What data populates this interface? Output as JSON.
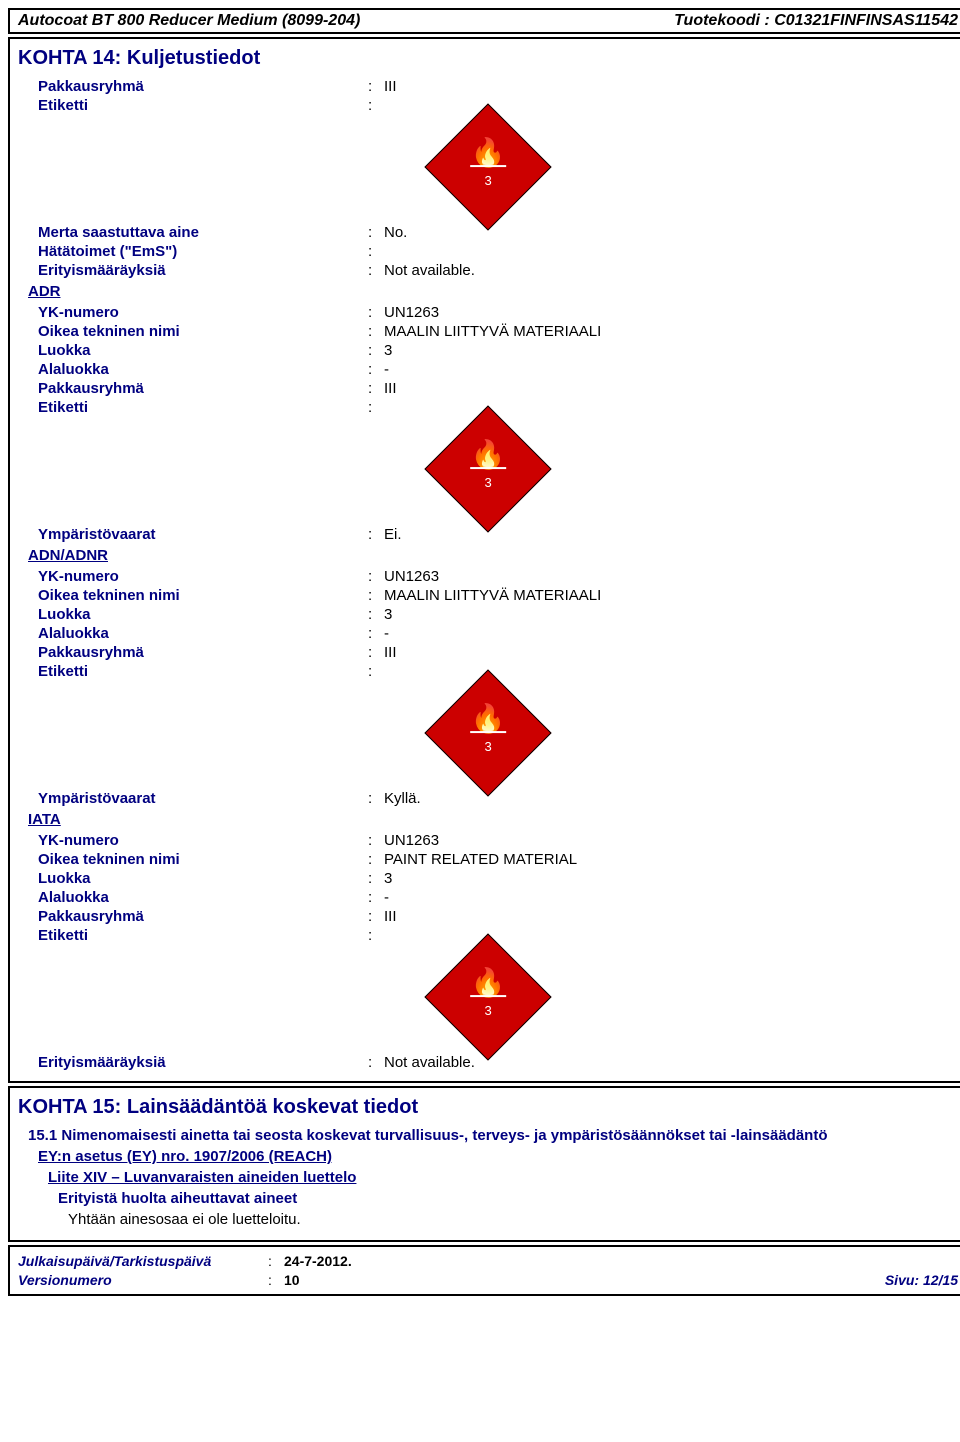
{
  "header": {
    "left": "Autocoat BT 800 Reducer Medium (8099-204)",
    "right": "Tuotekoodi : C01321FINFINSAS11542"
  },
  "section14": {
    "title": "KOHTA 14: Kuljetustiedot",
    "top": [
      {
        "l": "Pakkausryhmä",
        "v": "III"
      },
      {
        "l": "Etiketti",
        "v": ""
      }
    ],
    "mid": [
      {
        "l": "Merta saastuttava aine",
        "v": "No."
      },
      {
        "l": "Hätätoimet (\"EmS\")",
        "v": ""
      },
      {
        "l": "Erityismääräyksiä",
        "v": "Not available."
      }
    ],
    "adr": {
      "title": "ADR",
      "rows": [
        {
          "l": "YK-numero",
          "v": "UN1263"
        },
        {
          "l": "Oikea tekninen nimi",
          "v": "MAALIN LIITTYVÄ MATERIAALI"
        },
        {
          "l": "Luokka",
          "v": "3"
        },
        {
          "l": "Alaluokka",
          "v": "-"
        },
        {
          "l": "Pakkausryhmä",
          "v": "III"
        },
        {
          "l": "Etiketti",
          "v": ""
        }
      ],
      "env": [
        {
          "l": "Ympäristövaarat",
          "v": "Ei."
        }
      ]
    },
    "adn": {
      "title": "ADN/ADNR",
      "rows": [
        {
          "l": "YK-numero",
          "v": "UN1263"
        },
        {
          "l": "Oikea tekninen nimi",
          "v": "MAALIN LIITTYVÄ MATERIAALI"
        },
        {
          "l": "Luokka",
          "v": "3"
        },
        {
          "l": "Alaluokka",
          "v": "-"
        },
        {
          "l": "Pakkausryhmä",
          "v": "III"
        },
        {
          "l": "Etiketti",
          "v": ""
        }
      ],
      "env": [
        {
          "l": "Ympäristövaarat",
          "v": "Kyllä."
        }
      ]
    },
    "iata": {
      "title": "IATA",
      "rows": [
        {
          "l": "YK-numero",
          "v": "UN1263"
        },
        {
          "l": "Oikea tekninen nimi",
          "v": "PAINT RELATED MATERIAL"
        },
        {
          "l": "Luokka",
          "v": "3"
        },
        {
          "l": "Alaluokka",
          "v": "-"
        },
        {
          "l": "Pakkausryhmä",
          "v": "III"
        },
        {
          "l": "Etiketti",
          "v": ""
        }
      ]
    },
    "last": [
      {
        "l": "Erityismääräyksiä",
        "v": "Not available."
      }
    ]
  },
  "section15": {
    "title": "KOHTA 15: Lainsäädäntöä koskevat tiedot",
    "sub": "15.1 Nimenomaisesti ainetta tai seosta koskevat turvallisuus-, terveys- ja ympäristösäännökset tai -lainsäädäntö",
    "line1": "EY:n asetus (EY) nro. 1907/2006 (REACH)",
    "line2": "Liite XIV – Luvanvaraisten aineiden luettelo",
    "line3": "Erityistä huolta aiheuttavat aineet",
    "line4": "Yhtään ainesosaa ei ole luetteloitu."
  },
  "footer": {
    "date_label": "Julkaisupäivä/Tarkistuspäivä",
    "date": "24-7-2012.",
    "ver_label": "Versionumero",
    "ver": "10",
    "page": "Sivu: 12/15"
  },
  "hazard": {
    "num": "3"
  }
}
